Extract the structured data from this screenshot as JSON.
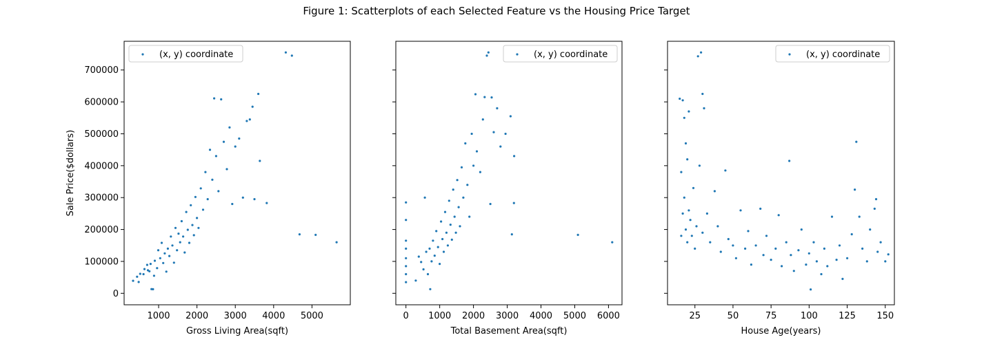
{
  "figure": {
    "title": "Figure 1: Scatterplots of each Selected Feature vs the Housing Price Target"
  },
  "colors": {
    "marker": "#1f77b4",
    "axis": "#000000",
    "legend_border": "#cccccc"
  },
  "chart_data": [
    {
      "type": "scatter",
      "xlabel": "Gross Living Area(sqft)",
      "ylabel": "Sale Price($dollars)",
      "xlim": [
        100,
        6000
      ],
      "ylim": [
        -36000,
        790000
      ],
      "xticks": [
        1000,
        2000,
        3000,
        4000,
        5000
      ],
      "yticks": [
        0,
        100000,
        200000,
        300000,
        400000,
        500000,
        600000,
        700000
      ],
      "show_ytick_labels": true,
      "legend": {
        "label": "(x, y) coordinate",
        "position": "top-left"
      },
      "grid": false,
      "series": [
        {
          "name": "(x, y) coordinate",
          "points": [
            [
              334,
              39300
            ],
            [
              438,
              52000
            ],
            [
              480,
              35300
            ],
            [
              520,
              61000
            ],
            [
              605,
              60000
            ],
            [
              630,
              76000
            ],
            [
              700,
              89000
            ],
            [
              720,
              72000
            ],
            [
              760,
              69000
            ],
            [
              790,
              92000
            ],
            [
              815,
              13100
            ],
            [
              853,
              12700
            ],
            [
              880,
              55000
            ],
            [
              900,
              102000
            ],
            [
              960,
              79000
            ],
            [
              990,
              135000
            ],
            [
              1040,
              110000
            ],
            [
              1080,
              158000
            ],
            [
              1120,
              95000
            ],
            [
              1160,
              125000
            ],
            [
              1200,
              68000
            ],
            [
              1240,
              140000
            ],
            [
              1280,
              117000
            ],
            [
              1320,
              178000
            ],
            [
              1360,
              150000
            ],
            [
              1400,
              96000
            ],
            [
              1440,
              205000
            ],
            [
              1480,
              135000
            ],
            [
              1520,
              187000
            ],
            [
              1560,
              160000
            ],
            [
              1600,
              226000
            ],
            [
              1640,
              178000
            ],
            [
              1680,
              128000
            ],
            [
              1720,
              255000
            ],
            [
              1760,
              199000
            ],
            [
              1800,
              158000
            ],
            [
              1840,
              276000
            ],
            [
              1880,
              214000
            ],
            [
              1920,
              182000
            ],
            [
              1960,
              302000
            ],
            [
              2000,
              236000
            ],
            [
              2040,
              205000
            ],
            [
              2100,
              329000
            ],
            [
              2160,
              262000
            ],
            [
              2220,
              380000
            ],
            [
              2280,
              295000
            ],
            [
              2340,
              450000
            ],
            [
              2400,
              356000
            ],
            [
              2450,
              611000
            ],
            [
              2500,
              430000
            ],
            [
              2560,
              320000
            ],
            [
              2630,
              608000
            ],
            [
              2700,
              475000
            ],
            [
              2780,
              389000
            ],
            [
              2850,
              520000
            ],
            [
              2920,
              280000
            ],
            [
              3000,
              460000
            ],
            [
              3100,
              485000
            ],
            [
              3200,
              300000
            ],
            [
              3300,
              540000
            ],
            [
              3380,
              545000
            ],
            [
              3450,
              585000
            ],
            [
              3500,
              295000
            ],
            [
              3600,
              625000
            ],
            [
              3640,
              415000
            ],
            [
              3820,
              283000
            ],
            [
              4316,
              755000
            ],
            [
              4476,
              745000
            ],
            [
              4676,
              184750
            ],
            [
              5095,
              183200
            ],
            [
              5642,
              160000
            ]
          ]
        }
      ]
    },
    {
      "type": "scatter",
      "xlabel": "Total Basement Area(sqft)",
      "ylabel": "",
      "xlim": [
        -300,
        6400
      ],
      "ylim": [
        -36000,
        790000
      ],
      "xticks": [
        0,
        1000,
        2000,
        3000,
        4000,
        5000,
        6000
      ],
      "yticks": [
        0,
        100000,
        200000,
        300000,
        400000,
        500000,
        600000,
        700000
      ],
      "show_ytick_labels": false,
      "legend": {
        "label": "(x, y) coordinate",
        "position": "top-right"
      },
      "grid": false,
      "series": [
        {
          "name": "(x, y) coordinate",
          "points": [
            [
              0,
              35000
            ],
            [
              0,
              60000
            ],
            [
              0,
              85000
            ],
            [
              0,
              110000
            ],
            [
              0,
              140000
            ],
            [
              0,
              165000
            ],
            [
              0,
              230000
            ],
            [
              0,
              285000
            ],
            [
              290,
              40000
            ],
            [
              380,
              115000
            ],
            [
              450,
              98000
            ],
            [
              520,
              75000
            ],
            [
              560,
              300000
            ],
            [
              600,
              130000
            ],
            [
              650,
              60000
            ],
            [
              700,
              140000
            ],
            [
              720,
              13000
            ],
            [
              760,
              100000
            ],
            [
              800,
              165000
            ],
            [
              850,
              118000
            ],
            [
              900,
              195000
            ],
            [
              950,
              145000
            ],
            [
              1000,
              92000
            ],
            [
              1040,
              225000
            ],
            [
              1080,
              170000
            ],
            [
              1120,
              130000
            ],
            [
              1160,
              255000
            ],
            [
              1200,
              190000
            ],
            [
              1240,
              150000
            ],
            [
              1280,
              290000
            ],
            [
              1320,
              215000
            ],
            [
              1360,
              168000
            ],
            [
              1400,
              325000
            ],
            [
              1440,
              240000
            ],
            [
              1480,
              190000
            ],
            [
              1520,
              355000
            ],
            [
              1560,
              270000
            ],
            [
              1600,
              210000
            ],
            [
              1650,
              395000
            ],
            [
              1700,
              300000
            ],
            [
              1760,
              470000
            ],
            [
              1820,
              340000
            ],
            [
              1880,
              240000
            ],
            [
              1950,
              500000
            ],
            [
              2000,
              400000
            ],
            [
              2060,
              624000
            ],
            [
              2100,
              445000
            ],
            [
              2200,
              380000
            ],
            [
              2280,
              545000
            ],
            [
              2330,
              615000
            ],
            [
              2396,
              745000
            ],
            [
              2444,
              755000
            ],
            [
              2500,
              280000
            ],
            [
              2540,
              614000
            ],
            [
              2600,
              505000
            ],
            [
              2700,
              580000
            ],
            [
              2800,
              460000
            ],
            [
              2950,
              500000
            ],
            [
              3100,
              555000
            ],
            [
              3138,
              184750
            ],
            [
              3200,
              283000
            ],
            [
              3206,
              430000
            ],
            [
              5095,
              183200
            ],
            [
              6110,
              160000
            ]
          ]
        }
      ]
    },
    {
      "type": "scatter",
      "xlabel": "House Age(years)",
      "ylabel": "",
      "xlim": [
        7,
        156
      ],
      "ylim": [
        -36000,
        790000
      ],
      "xticks": [
        25,
        50,
        75,
        100,
        125,
        150
      ],
      "yticks": [
        0,
        100000,
        200000,
        300000,
        400000,
        500000,
        600000,
        700000
      ],
      "show_ytick_labels": false,
      "legend": {
        "label": "(x, y) coordinate",
        "position": "top-right"
      },
      "grid": false,
      "series": [
        {
          "name": "(x, y) coordinate",
          "points": [
            [
              15,
              610000
            ],
            [
              16,
              180000
            ],
            [
              16,
              380000
            ],
            [
              17,
              605000
            ],
            [
              17,
              250000
            ],
            [
              18,
              550000
            ],
            [
              18,
              300000
            ],
            [
              19,
              470000
            ],
            [
              19,
              200000
            ],
            [
              20,
              420000
            ],
            [
              20,
              160000
            ],
            [
              21,
              570000
            ],
            [
              21,
              260000
            ],
            [
              22,
              230000
            ],
            [
              23,
              180000
            ],
            [
              24,
              330000
            ],
            [
              25,
              140000
            ],
            [
              26,
              210000
            ],
            [
              27,
              743000
            ],
            [
              28,
              400000
            ],
            [
              29,
              755000
            ],
            [
              30,
              625000
            ],
            [
              30,
              190000
            ],
            [
              31,
              580000
            ],
            [
              33,
              250000
            ],
            [
              35,
              160000
            ],
            [
              38,
              320000
            ],
            [
              40,
              210000
            ],
            [
              42,
              130000
            ],
            [
              45,
              385000
            ],
            [
              47,
              170000
            ],
            [
              50,
              150000
            ],
            [
              52,
              110000
            ],
            [
              55,
              260000
            ],
            [
              58,
              140000
            ],
            [
              60,
              195000
            ],
            [
              62,
              90000
            ],
            [
              65,
              150000
            ],
            [
              68,
              265000
            ],
            [
              70,
              120000
            ],
            [
              72,
              180000
            ],
            [
              75,
              105000
            ],
            [
              78,
              140000
            ],
            [
              80,
              245000
            ],
            [
              82,
              85000
            ],
            [
              85,
              160000
            ],
            [
              87,
              415000
            ],
            [
              88,
              120000
            ],
            [
              90,
              70000
            ],
            [
              93,
              135000
            ],
            [
              95,
              200000
            ],
            [
              98,
              90000
            ],
            [
              100,
              125000
            ],
            [
              101,
              12000
            ],
            [
              103,
              160000
            ],
            [
              105,
              100000
            ],
            [
              108,
              60000
            ],
            [
              110,
              140000
            ],
            [
              112,
              85000
            ],
            [
              115,
              240000
            ],
            [
              118,
              105000
            ],
            [
              120,
              150000
            ],
            [
              122,
              45000
            ],
            [
              125,
              110000
            ],
            [
              128,
              185000
            ],
            [
              130,
              325000
            ],
            [
              131,
              475000
            ],
            [
              133,
              240000
            ],
            [
              135,
              140000
            ],
            [
              138,
              100000
            ],
            [
              140,
              200000
            ],
            [
              143,
              265000
            ],
            [
              144,
              295000
            ],
            [
              145,
              130000
            ],
            [
              147,
              160000
            ],
            [
              150,
              100000
            ],
            [
              152,
              122000
            ]
          ]
        }
      ]
    }
  ]
}
